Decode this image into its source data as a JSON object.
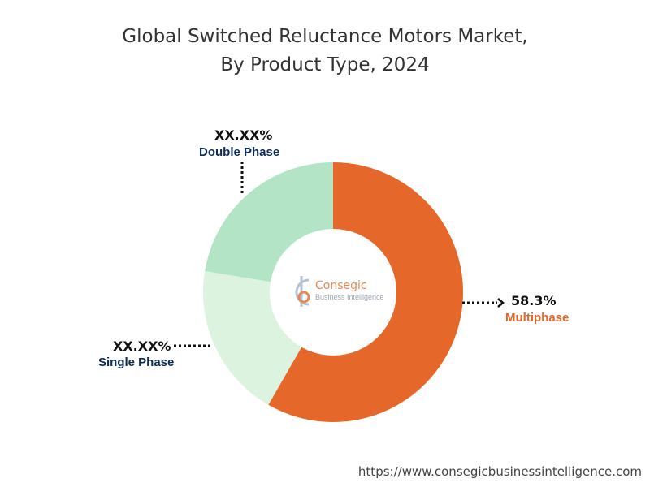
{
  "title": {
    "line1": "Global Switched Reluctance Motors Market,",
    "line2": "By Product Type, 2024"
  },
  "chart_data": {
    "type": "pie",
    "donut": true,
    "title": "Global Switched Reluctance Motors Market, By Product Type, 2024",
    "categories": [
      "Multiphase",
      "Single Phase",
      "Double Phase"
    ],
    "values": [
      58.3,
      19.3,
      22.4
    ],
    "value_labels": [
      "58.3%",
      "XX.XX%",
      "XX.XX%"
    ],
    "colors": [
      "#e5672a",
      "#dcf4df",
      "#b3e4c6"
    ],
    "label_colors": [
      "#e5672a",
      "#0c2d57",
      "#0c2d57"
    ],
    "start_angle_deg": 0,
    "direction": "clockwise"
  },
  "labels": {
    "multiphase": {
      "value": "58.3%",
      "name": "Multiphase"
    },
    "single": {
      "value": "XX.XX%",
      "name": "Single Phase"
    },
    "double": {
      "value": "XX.XX%",
      "name": "Double Phase"
    }
  },
  "logo": {
    "main": "Consegic",
    "sub": "Business Intelligence"
  },
  "footer": {
    "url": "https://www.consegicbusinessintelligence.com"
  }
}
